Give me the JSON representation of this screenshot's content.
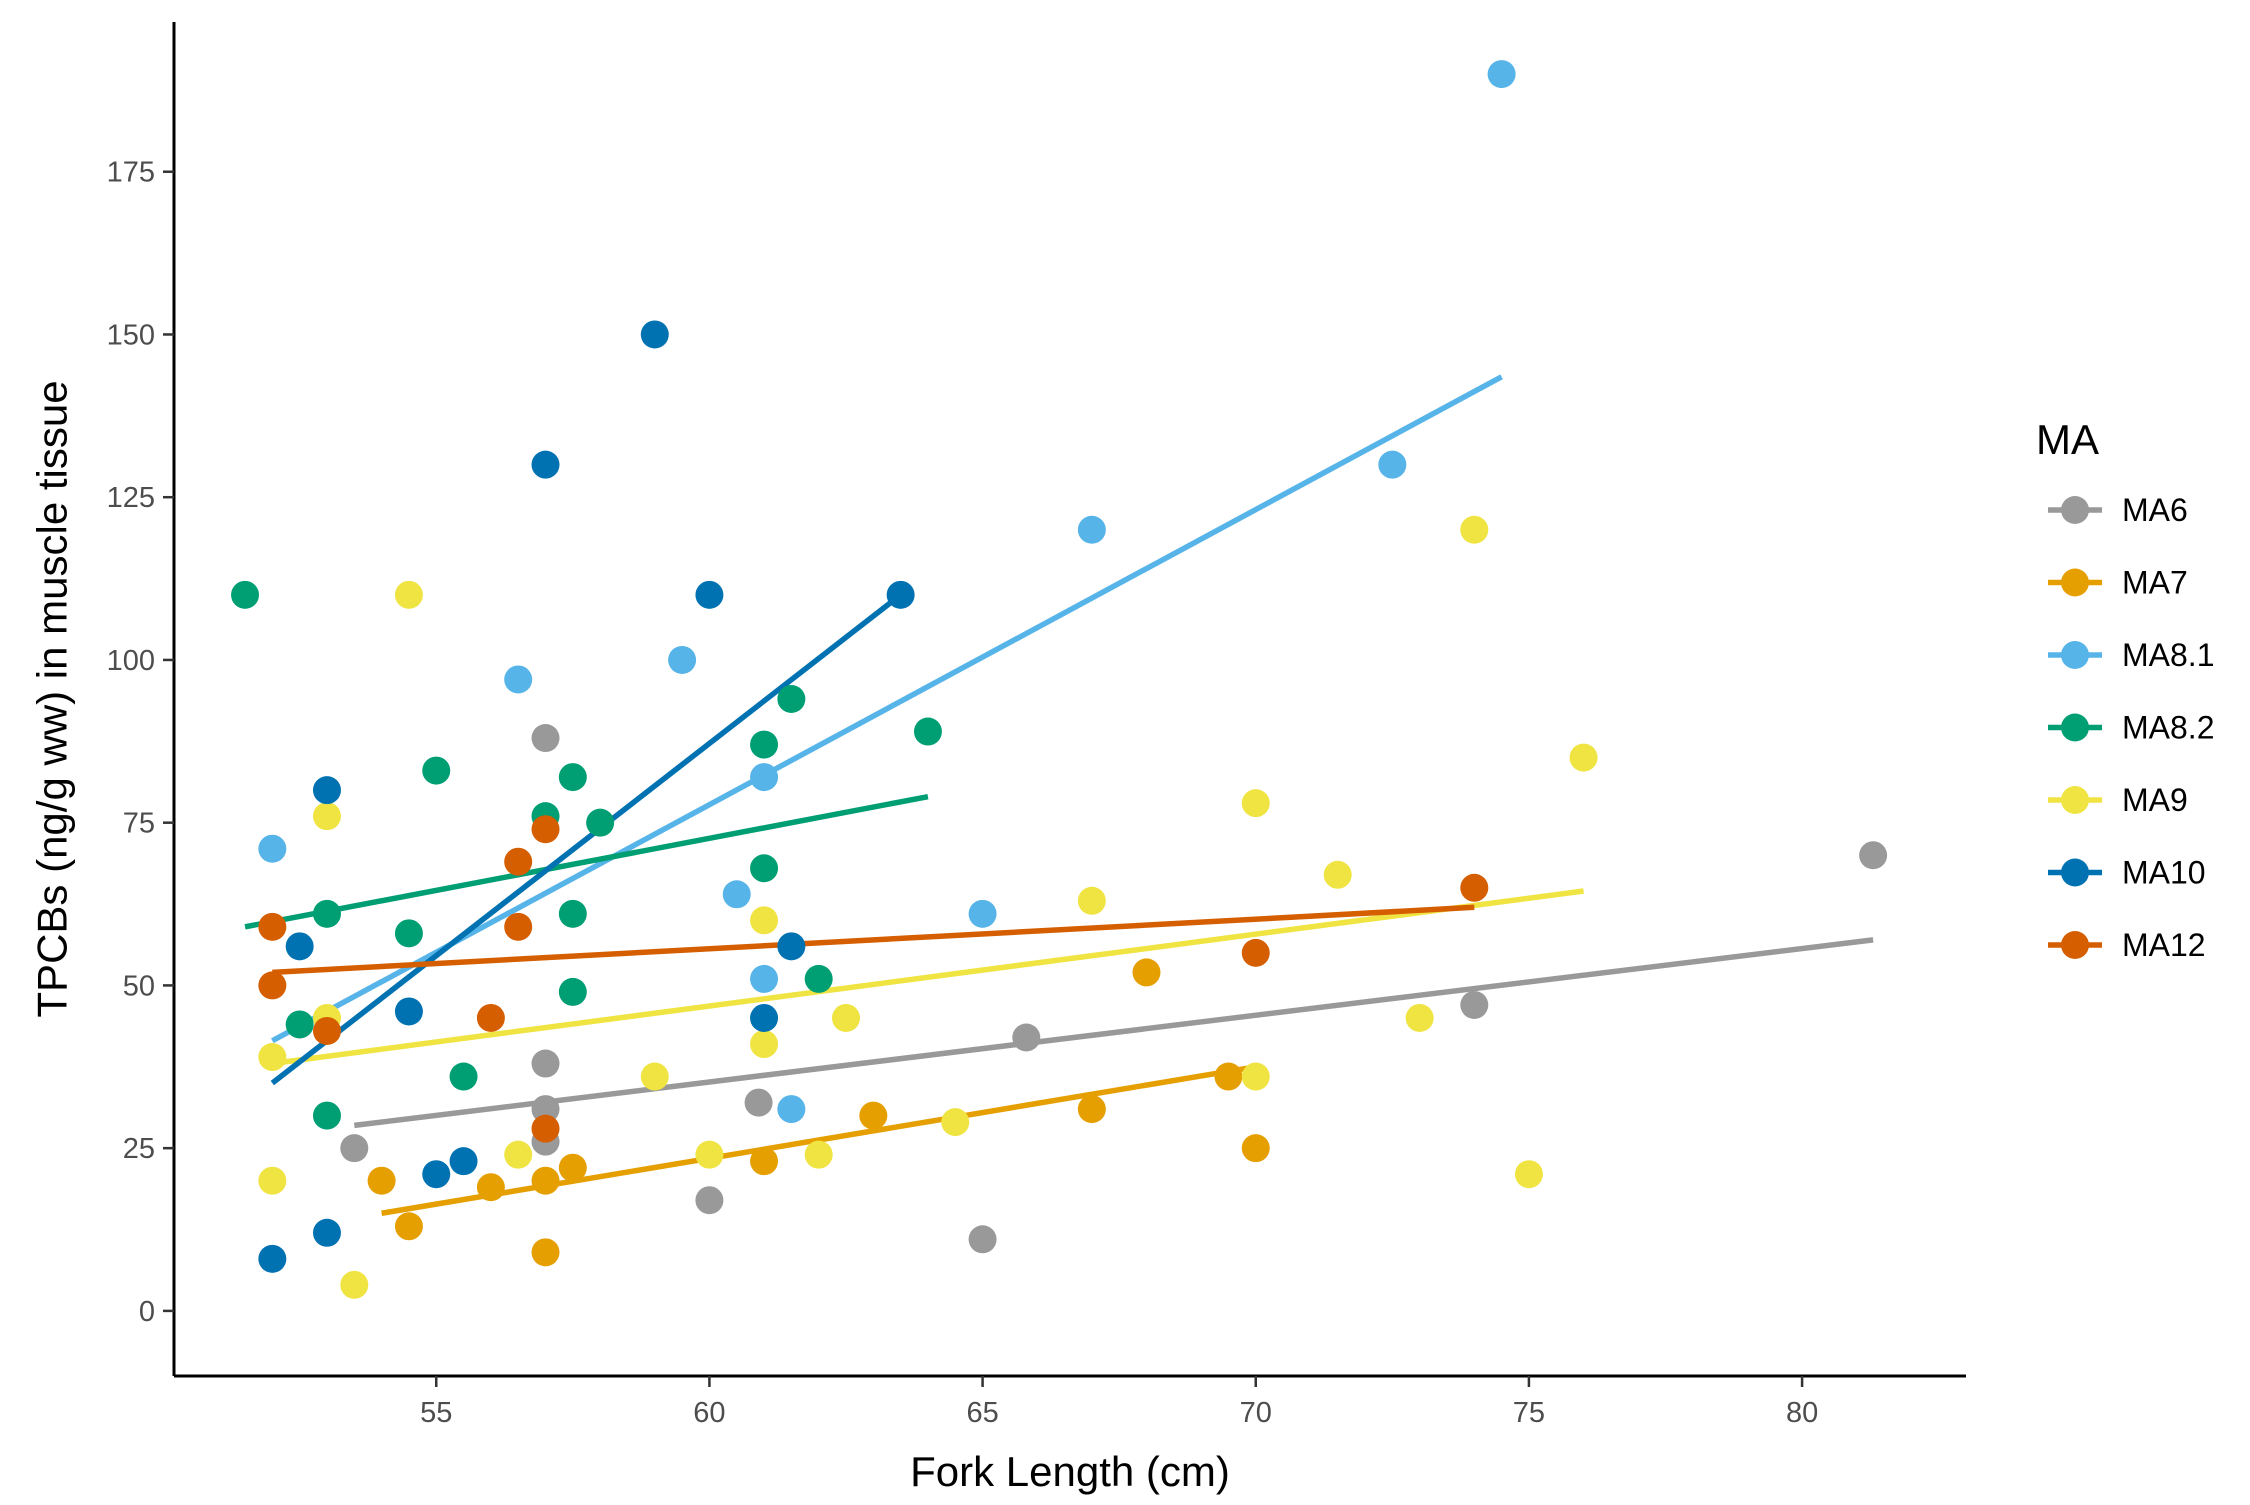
{
  "chart_data": {
    "type": "scatter",
    "xlabel": "Fork Length (cm)",
    "ylabel": "TPCBs (ng/g ww) in muscle tissue",
    "xlim": [
      50.2,
      83.0
    ],
    "ylim": [
      -10,
      198
    ],
    "x_ticks": [
      55,
      60,
      65,
      70,
      75,
      80
    ],
    "y_ticks": [
      0,
      25,
      50,
      75,
      100,
      125,
      150,
      175
    ],
    "grid": false,
    "legend": {
      "title": "MA",
      "position": "right"
    },
    "series": [
      {
        "name": "MA6",
        "color": "#999999",
        "points": [
          [
            53.5,
            25
          ],
          [
            57,
            88
          ],
          [
            57,
            38
          ],
          [
            57,
            31
          ],
          [
            57,
            26
          ],
          [
            60,
            17
          ],
          [
            60.9,
            32
          ],
          [
            65,
            11
          ],
          [
            65.8,
            42
          ],
          [
            74,
            47
          ],
          [
            81.3,
            70
          ]
        ],
        "trend": [
          [
            53.5,
            28.5
          ],
          [
            81.3,
            57
          ]
        ]
      },
      {
        "name": "MA7",
        "color": "#E69F00",
        "points": [
          [
            54,
            20
          ],
          [
            54.5,
            13
          ],
          [
            56,
            19
          ],
          [
            57,
            20
          ],
          [
            57,
            9
          ],
          [
            57.5,
            22
          ],
          [
            61,
            23
          ],
          [
            63,
            30
          ],
          [
            67,
            31
          ],
          [
            68,
            52
          ],
          [
            69.5,
            36
          ],
          [
            70,
            25
          ]
        ],
        "trend": [
          [
            54,
            15
          ],
          [
            70,
            37.5
          ]
        ]
      },
      {
        "name": "MA8.1",
        "color": "#56B4E9",
        "points": [
          [
            52,
            71
          ],
          [
            56.5,
            97
          ],
          [
            59.5,
            100
          ],
          [
            60.5,
            64
          ],
          [
            61,
            82
          ],
          [
            61,
            51
          ],
          [
            61.5,
            31
          ],
          [
            65,
            61
          ],
          [
            67,
            120
          ],
          [
            72.5,
            130
          ],
          [
            74.5,
            190
          ]
        ],
        "trend": [
          [
            52,
            41.5
          ],
          [
            74.5,
            143.5
          ]
        ]
      },
      {
        "name": "MA8.2",
        "color": "#009E73",
        "points": [
          [
            51.5,
            110
          ],
          [
            52.5,
            44
          ],
          [
            53,
            61
          ],
          [
            53,
            30
          ],
          [
            54.5,
            58
          ],
          [
            55,
            83
          ],
          [
            55.5,
            36
          ],
          [
            57,
            76
          ],
          [
            57.5,
            82
          ],
          [
            57.5,
            61
          ],
          [
            57.5,
            49
          ],
          [
            58,
            75
          ],
          [
            61,
            87
          ],
          [
            61,
            68
          ],
          [
            61.5,
            94
          ],
          [
            62,
            51
          ],
          [
            64,
            89
          ]
        ],
        "trend": [
          [
            51.5,
            59
          ],
          [
            64,
            79
          ]
        ]
      },
      {
        "name": "MA9",
        "color": "#F0E442",
        "points": [
          [
            52,
            39
          ],
          [
            52,
            20
          ],
          [
            53,
            76
          ],
          [
            53,
            45
          ],
          [
            53.5,
            4
          ],
          [
            54.5,
            110
          ],
          [
            56.5,
            24
          ],
          [
            59,
            36
          ],
          [
            60,
            24
          ],
          [
            61,
            60
          ],
          [
            61,
            41
          ],
          [
            62,
            24
          ],
          [
            62.5,
            45
          ],
          [
            64.5,
            29
          ],
          [
            67,
            63
          ],
          [
            70,
            78
          ],
          [
            70,
            36
          ],
          [
            71.5,
            67
          ],
          [
            73,
            45
          ],
          [
            74,
            120
          ],
          [
            75,
            21
          ],
          [
            76,
            85
          ]
        ],
        "trend": [
          [
            52,
            38
          ],
          [
            76,
            64.5
          ]
        ]
      },
      {
        "name": "MA10",
        "color": "#0072B2",
        "points": [
          [
            52,
            8
          ],
          [
            52.5,
            56
          ],
          [
            53,
            80
          ],
          [
            53,
            12
          ],
          [
            54.5,
            46
          ],
          [
            55,
            21
          ],
          [
            55.5,
            23
          ],
          [
            57,
            130
          ],
          [
            59,
            150
          ],
          [
            60,
            110
          ],
          [
            61,
            45
          ],
          [
            61.5,
            56
          ],
          [
            63.5,
            110
          ]
        ],
        "trend": [
          [
            52,
            35
          ],
          [
            63.5,
            110
          ]
        ]
      },
      {
        "name": "MA12",
        "color": "#D55E00",
        "points": [
          [
            52,
            59
          ],
          [
            52,
            50
          ],
          [
            53,
            43
          ],
          [
            56,
            45
          ],
          [
            56.5,
            69
          ],
          [
            56.5,
            59
          ],
          [
            57,
            74
          ],
          [
            57,
            28
          ],
          [
            70,
            55
          ],
          [
            74,
            65
          ]
        ],
        "trend": [
          [
            52,
            52
          ],
          [
            74,
            62
          ]
        ]
      }
    ]
  }
}
